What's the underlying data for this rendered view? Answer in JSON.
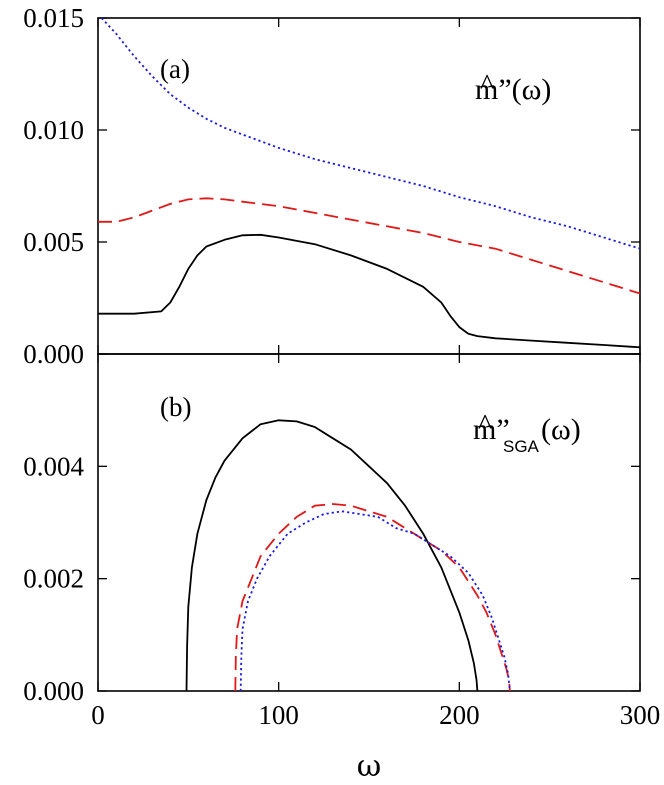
{
  "chart_data": [
    {
      "type": "line",
      "panel_label": "(a)",
      "ylabel_main": "m”(ω)",
      "ylabel_hat": "^",
      "ylabel_sub": "",
      "xlabel": "ω",
      "xlim": [
        0,
        300
      ],
      "ylim": [
        0,
        0.015
      ],
      "xticks": [
        0,
        100,
        200,
        300
      ],
      "yticks": [
        "0.000",
        "0.005",
        "0.010",
        "0.015"
      ],
      "ytick_values": [
        0,
        0.005,
        0.01,
        0.015
      ],
      "series": [
        {
          "name": "solid",
          "color": "#000000",
          "dash": "solid",
          "x": [
            0,
            20,
            35,
            40,
            45,
            50,
            55,
            60,
            70,
            80,
            90,
            100,
            120,
            140,
            160,
            180,
            190,
            195,
            200,
            205,
            210,
            220,
            240,
            260,
            280,
            300
          ],
          "y": [
            0.0018,
            0.0018,
            0.0019,
            0.0023,
            0.003,
            0.0038,
            0.0044,
            0.0048,
            0.0051,
            0.0053,
            0.00532,
            0.0052,
            0.0049,
            0.0044,
            0.0038,
            0.003,
            0.0023,
            0.0017,
            0.0012,
            0.0009,
            0.0008,
            0.0007,
            0.0006,
            0.0005,
            0.0004,
            0.0003
          ]
        },
        {
          "name": "dashed",
          "color": "#e01818",
          "dash": "dashed",
          "x": [
            0,
            10,
            20,
            30,
            40,
            50,
            60,
            70,
            80,
            100,
            120,
            140,
            160,
            180,
            200,
            220,
            240,
            260,
            280,
            300
          ],
          "y": [
            0.0059,
            0.0059,
            0.0061,
            0.0064,
            0.0067,
            0.0069,
            0.00695,
            0.0069,
            0.0068,
            0.0066,
            0.0063,
            0.006,
            0.0057,
            0.0054,
            0.005,
            0.0047,
            0.0042,
            0.0037,
            0.0032,
            0.0027
          ]
        },
        {
          "name": "dotted",
          "color": "#1a1ae0",
          "dash": "dotted",
          "x": [
            2,
            10,
            20,
            30,
            40,
            50,
            60,
            70,
            80,
            90,
            100,
            120,
            140,
            160,
            180,
            200,
            220,
            240,
            260,
            280,
            300
          ],
          "y": [
            0.015,
            0.0143,
            0.0133,
            0.0124,
            0.0116,
            0.011,
            0.0105,
            0.0101,
            0.0098,
            0.0095,
            0.0092,
            0.0087,
            0.0083,
            0.0079,
            0.0075,
            0.007,
            0.0066,
            0.0061,
            0.0057,
            0.0052,
            0.0047
          ]
        }
      ]
    },
    {
      "type": "line",
      "panel_label": "(b)",
      "ylabel_main": "m”",
      "ylabel_hat": "^",
      "ylabel_sub": "SGA",
      "ylabel_tail": "(ω)",
      "xlabel": "ω",
      "xlim": [
        0,
        300
      ],
      "ylim": [
        0,
        0.006
      ],
      "xticks": [
        "0",
        "100",
        "200",
        "300"
      ],
      "xtick_values": [
        0,
        100,
        200,
        300
      ],
      "yticks": [
        "0.000",
        "0.002",
        "0.004"
      ],
      "ytick_values": [
        0,
        0.002,
        0.004
      ],
      "series": [
        {
          "name": "solid",
          "color": "#000000",
          "dash": "solid",
          "x": [
            49,
            49.3,
            50,
            52,
            55,
            60,
            65,
            70,
            80,
            90,
            100,
            110,
            120,
            130,
            140,
            150,
            160,
            170,
            180,
            190,
            195,
            200,
            205,
            208,
            209.5,
            210
          ],
          "y": [
            0,
            0.0008,
            0.0015,
            0.0022,
            0.0028,
            0.0034,
            0.0038,
            0.0041,
            0.0045,
            0.00475,
            0.00482,
            0.0048,
            0.0047,
            0.0045,
            0.0043,
            0.004,
            0.0037,
            0.0033,
            0.0028,
            0.0022,
            0.0018,
            0.0014,
            0.0009,
            0.0005,
            0.0002,
            0
          ]
        },
        {
          "name": "dashed",
          "color": "#e01818",
          "dash": "dashed",
          "x": [
            76,
            76.3,
            77,
            80,
            85,
            90,
            100,
            110,
            120,
            130,
            140,
            150,
            160,
            170,
            180,
            190,
            200,
            210,
            215,
            220,
            224,
            226,
            227.5,
            228
          ],
          "y": [
            0,
            0.0006,
            0.0011,
            0.0016,
            0.002,
            0.0024,
            0.0028,
            0.0031,
            0.0033,
            0.00333,
            0.0033,
            0.0032,
            0.0031,
            0.0029,
            0.0027,
            0.0025,
            0.0022,
            0.0017,
            0.0014,
            0.001,
            0.0006,
            0.0004,
            0.0002,
            0
          ]
        },
        {
          "name": "dotted",
          "color": "#1a1ae0",
          "dash": "dotted",
          "x": [
            79,
            79.3,
            80,
            83,
            88,
            95,
            105,
            115,
            125,
            135,
            145,
            155,
            165,
            175,
            185,
            195,
            205,
            213,
            218,
            222,
            225,
            227,
            228
          ],
          "y": [
            0,
            0.0006,
            0.0011,
            0.0016,
            0.002,
            0.0024,
            0.0028,
            0.003,
            0.00315,
            0.0032,
            0.00315,
            0.0031,
            0.0029,
            0.0028,
            0.0026,
            0.0024,
            0.0021,
            0.0017,
            0.0013,
            0.0009,
            0.0006,
            0.0003,
            0
          ]
        }
      ]
    }
  ]
}
